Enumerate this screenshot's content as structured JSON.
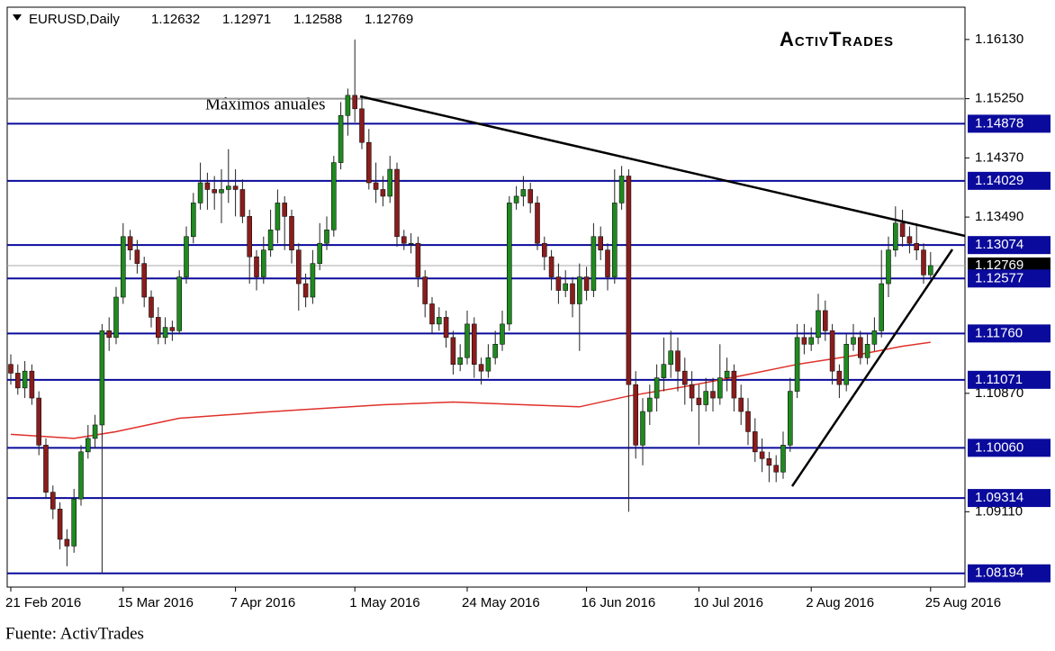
{
  "chart_data": {
    "type": "candlestick",
    "symbol": "EURUSD,Daily",
    "logo": "ActivTrades",
    "annotation": "Máximos anuales",
    "source": "Fuente: ActivTrades",
    "colors": {
      "up": "#1f8a1f",
      "down": "#8b1c1c",
      "level": "#0a0a9c",
      "ma": "#e0302a"
    },
    "ylim": [
      1.0799,
      1.1661
    ],
    "yticks": [
      {
        "value": 1.1613,
        "label": "1.16130"
      },
      {
        "value": 1.1525,
        "label": "1.15250"
      },
      {
        "value": 1.1437,
        "label": "1.14370"
      },
      {
        "value": 1.1349,
        "label": "1.13490"
      },
      {
        "value": 1.1087,
        "label": "1.10870"
      },
      {
        "value": 1.0911,
        "label": "1.09110"
      }
    ],
    "levels": [
      1.14878,
      1.14029,
      1.13074,
      1.12577,
      {
        "value": 1.1176,
        "label": "1.11760"
      },
      1.11071,
      {
        "value": 1.1006,
        "label": "1.10060"
      },
      1.09314,
      1.08194
    ],
    "year_high": 1.1525,
    "xticks": [
      {
        "value": 0,
        "label": "21 Feb 2016"
      },
      {
        "value": 16,
        "label": "15 Mar 2016"
      },
      {
        "value": 32,
        "label": "7 Apr 2016"
      },
      {
        "value": 49,
        "label": "1 May 2016"
      },
      {
        "value": 65,
        "label": "24 May 2016"
      },
      {
        "value": 82,
        "label": "16 Jun 2016"
      },
      {
        "value": 98,
        "label": "10 Jul 2016"
      },
      {
        "value": 114,
        "label": "2 Aug 2016"
      },
      {
        "value": 131,
        "label": "25 Aug 2016"
      }
    ],
    "open": [
      1.113,
      1.1117,
      1.1095,
      1.112,
      1.108,
      1.101,
      1.094,
      1.0915,
      1.087,
      1.086,
      1.093,
      1.1,
      1.102,
      1.104,
      1.118,
      1.117,
      1.123,
      1.132,
      1.13,
      1.128,
      1.123,
      1.12,
      1.117,
      1.1185,
      1.118,
      1.126,
      1.132,
      1.137,
      1.14,
      1.139,
      1.1385,
      1.139,
      1.1395,
      1.139,
      1.135,
      1.129,
      1.126,
      1.13,
      1.133,
      1.137,
      1.135,
      1.13,
      1.125,
      1.123,
      1.128,
      1.131,
      1.133,
      1.143,
      1.15,
      1.153,
      1.151,
      1.146,
      1.14,
      1.139,
      1.138,
      1.142,
      1.132,
      1.131,
      1.131,
      1.126,
      1.122,
      1.119,
      1.12,
      1.117,
      1.113,
      1.114,
      1.119,
      1.113,
      1.112,
      1.114,
      1.116,
      1.119,
      1.137,
      1.138,
      1.139,
      1.137,
      1.131,
      1.129,
      1.126,
      1.124,
      1.125,
      1.122,
      1.126,
      1.124,
      1.132,
      1.13,
      1.126,
      1.137,
      1.141,
      1.11,
      1.101,
      1.106,
      1.108,
      1.111,
      1.113,
      1.115,
      1.112,
      1.11,
      1.108,
      1.107,
      1.109,
      1.108,
      1.111,
      1.112,
      1.108,
      1.106,
      1.103,
      1.1,
      1.099,
      1.098,
      1.097,
      1.101,
      1.109,
      1.117,
      1.116,
      1.117,
      1.121,
      1.118,
      1.112,
      1.11,
      1.116,
      1.117,
      1.114,
      1.116,
      1.118,
      1.125,
      1.13,
      1.134,
      1.132,
      1.131,
      1.13,
      1.12632
    ],
    "high": [
      1.1145,
      1.113,
      1.1135,
      1.113,
      1.109,
      1.102,
      1.095,
      1.0925,
      1.0885,
      1.0945,
      1.101,
      1.104,
      1.1055,
      1.119,
      1.12,
      1.1245,
      1.134,
      1.133,
      1.1315,
      1.129,
      1.124,
      1.1215,
      1.12,
      1.1195,
      1.127,
      1.1335,
      1.1385,
      1.143,
      1.1415,
      1.141,
      1.142,
      1.145,
      1.142,
      1.1405,
      1.136,
      1.13,
      1.132,
      1.136,
      1.139,
      1.138,
      1.136,
      1.131,
      1.1265,
      1.13,
      1.134,
      1.135,
      1.144,
      1.152,
      1.154,
      1.1613,
      1.153,
      1.148,
      1.143,
      1.141,
      1.144,
      1.143,
      1.133,
      1.1325,
      1.132,
      1.127,
      1.123,
      1.1215,
      1.121,
      1.118,
      1.116,
      1.121,
      1.12,
      1.114,
      1.116,
      1.118,
      1.121,
      1.138,
      1.1395,
      1.141,
      1.14,
      1.138,
      1.132,
      1.13,
      1.128,
      1.127,
      1.126,
      1.128,
      1.1275,
      1.134,
      1.1335,
      1.131,
      1.142,
      1.1425,
      1.142,
      1.112,
      1.108,
      1.11,
      1.113,
      1.117,
      1.118,
      1.117,
      1.114,
      1.112,
      1.11,
      1.111,
      1.111,
      1.116,
      1.114,
      1.113,
      1.11,
      1.108,
      1.105,
      1.102,
      1.1,
      1.0995,
      1.103,
      1.111,
      1.119,
      1.119,
      1.1185,
      1.1235,
      1.1225,
      1.119,
      1.113,
      1.1175,
      1.119,
      1.118,
      1.1175,
      1.12,
      1.13,
      1.132,
      1.1365,
      1.136,
      1.1335,
      1.134,
      1.131,
      1.12971
    ],
    "low": [
      1.11,
      1.1085,
      1.108,
      1.107,
      1.0995,
      1.093,
      1.09,
      1.0855,
      1.083,
      1.085,
      1.092,
      1.099,
      1.1005,
      1.0819,
      1.115,
      1.116,
      1.122,
      1.1285,
      1.1265,
      1.1215,
      1.1185,
      1.116,
      1.116,
      1.1165,
      1.1175,
      1.125,
      1.131,
      1.136,
      1.136,
      1.136,
      1.134,
      1.137,
      1.135,
      1.134,
      1.125,
      1.124,
      1.125,
      1.129,
      1.131,
      1.13,
      1.128,
      1.121,
      1.1215,
      1.122,
      1.127,
      1.13,
      1.132,
      1.142,
      1.147,
      1.149,
      1.145,
      1.139,
      1.137,
      1.1365,
      1.137,
      1.1305,
      1.13,
      1.1295,
      1.1245,
      1.12,
      1.1175,
      1.118,
      1.1155,
      1.1115,
      1.112,
      1.113,
      1.111,
      1.11,
      1.111,
      1.113,
      1.115,
      1.118,
      1.136,
      1.1365,
      1.1355,
      1.13,
      1.127,
      1.124,
      1.122,
      1.123,
      1.12,
      1.115,
      1.1225,
      1.123,
      1.1285,
      1.124,
      1.125,
      1.136,
      1.0911,
      1.099,
      1.098,
      1.104,
      1.106,
      1.109,
      1.111,
      1.109,
      1.107,
      1.106,
      1.101,
      1.106,
      1.106,
      1.107,
      1.109,
      1.106,
      1.104,
      1.101,
      1.0985,
      1.097,
      1.0955,
      1.0955,
      1.096,
      1.1,
      1.108,
      1.1145,
      1.115,
      1.116,
      1.1165,
      1.11,
      1.108,
      1.109,
      1.115,
      1.113,
      1.113,
      1.115,
      1.117,
      1.123,
      1.129,
      1.1305,
      1.1295,
      1.1285,
      1.125,
      1.12588
    ],
    "close": [
      1.1117,
      1.1095,
      1.112,
      1.108,
      1.101,
      1.094,
      1.0915,
      1.087,
      1.086,
      1.093,
      1.1,
      1.102,
      1.104,
      1.118,
      1.117,
      1.123,
      1.132,
      1.13,
      1.128,
      1.123,
      1.12,
      1.117,
      1.1185,
      1.118,
      1.126,
      1.132,
      1.137,
      1.14,
      1.139,
      1.1385,
      1.139,
      1.1395,
      1.139,
      1.135,
      1.129,
      1.126,
      1.13,
      1.133,
      1.137,
      1.135,
      1.13,
      1.125,
      1.123,
      1.128,
      1.131,
      1.133,
      1.143,
      1.15,
      1.153,
      1.151,
      1.146,
      1.14,
      1.139,
      1.138,
      1.142,
      1.132,
      1.131,
      1.131,
      1.126,
      1.122,
      1.119,
      1.12,
      1.117,
      1.113,
      1.114,
      1.119,
      1.113,
      1.112,
      1.114,
      1.116,
      1.119,
      1.137,
      1.138,
      1.139,
      1.137,
      1.131,
      1.129,
      1.126,
      1.124,
      1.125,
      1.122,
      1.126,
      1.124,
      1.132,
      1.13,
      1.126,
      1.137,
      1.141,
      1.11,
      1.101,
      1.106,
      1.108,
      1.111,
      1.113,
      1.115,
      1.112,
      1.11,
      1.108,
      1.107,
      1.109,
      1.108,
      1.111,
      1.112,
      1.108,
      1.106,
      1.103,
      1.1,
      1.099,
      1.098,
      1.097,
      1.101,
      1.109,
      1.117,
      1.116,
      1.117,
      1.121,
      1.118,
      1.112,
      1.11,
      1.116,
      1.117,
      1.114,
      1.116,
      1.118,
      1.125,
      1.13,
      1.134,
      1.132,
      1.131,
      1.13,
      1.1263,
      1.12769
    ],
    "ma": {
      "x": [
        0,
        9,
        15,
        24,
        36,
        42,
        53,
        63,
        73,
        81,
        88,
        96,
        104,
        112,
        120,
        127,
        131
      ],
      "values": [
        1.1026,
        1.102,
        1.103,
        1.105,
        1.1059,
        1.1063,
        1.107,
        1.1074,
        1.107,
        1.1067,
        1.1083,
        1.1097,
        1.1113,
        1.113,
        1.1143,
        1.1157,
        1.1163
      ]
    }
  }
}
